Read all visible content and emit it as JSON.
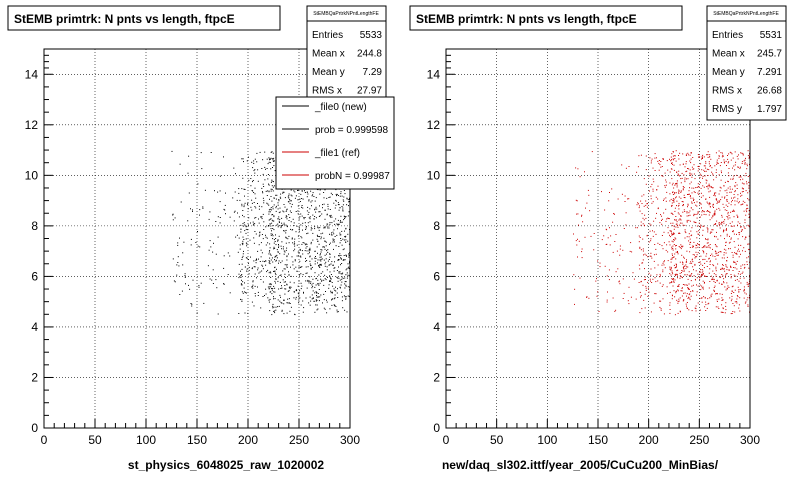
{
  "chart_data": [
    {
      "type": "scatter",
      "title": "StEMB primtrk: N pnts vs length, ftpcE",
      "xlabel": "st_physics_6048025_raw_1020002",
      "ylabel": "",
      "xlim": [
        0,
        300
      ],
      "ylim": [
        0,
        15
      ],
      "x_ticks": [
        "0",
        "50",
        "100",
        "150",
        "200",
        "250",
        "300"
      ],
      "y_ticks": [
        "0",
        "2",
        "4",
        "6",
        "8",
        "10",
        "12",
        "14"
      ],
      "grid": true,
      "series": [
        {
          "name": "_file0 (new)",
          "color": "#000000",
          "entries": 5533
        }
      ],
      "stats": {
        "name": "StEMBQaPrtrkNPntLengthFE",
        "rows": [
          {
            "label": "Entries",
            "value": "5533"
          },
          {
            "label": "Mean x",
            "value": "244.8"
          },
          {
            "label": "Mean y",
            "value": "7.29"
          },
          {
            "label": "RMS x",
            "value": "27.97"
          }
        ]
      },
      "legend": {
        "placement": "top-right",
        "entries": [
          {
            "label": "_file0 (new)",
            "color": "#000000"
          },
          {
            "label": "prob = 0.999598",
            "color": "#000000"
          },
          {
            "label": "_file1 (ref)",
            "color": "#cc0000"
          },
          {
            "label": "probN = 0.99987",
            "color": "#cc0000"
          }
        ]
      }
    },
    {
      "type": "scatter",
      "title": "StEMB primtrk: N pnts vs length, ftpcE",
      "xlabel": "new/daq_sl302.ittf/year_2005/CuCu200_MinBias/",
      "ylabel": "",
      "xlim": [
        0,
        300
      ],
      "ylim": [
        0,
        15
      ],
      "x_ticks": [
        "0",
        "50",
        "100",
        "150",
        "200",
        "250",
        "300"
      ],
      "y_ticks": [
        "0",
        "2",
        "4",
        "6",
        "8",
        "10",
        "12",
        "14"
      ],
      "grid": true,
      "series": [
        {
          "name": "_file1 (ref)",
          "color": "#cc0000",
          "entries": 5531
        }
      ],
      "stats": {
        "name": "StEMBQaPrtrkNPntLengthFE",
        "rows": [
          {
            "label": "Entries",
            "value": "5531"
          },
          {
            "label": "Mean x",
            "value": "245.7"
          },
          {
            "label": "Mean y",
            "value": "7.291"
          },
          {
            "label": "RMS x",
            "value": "26.68"
          },
          {
            "label": "RMS y",
            "value": "1.797"
          }
        ]
      }
    }
  ]
}
